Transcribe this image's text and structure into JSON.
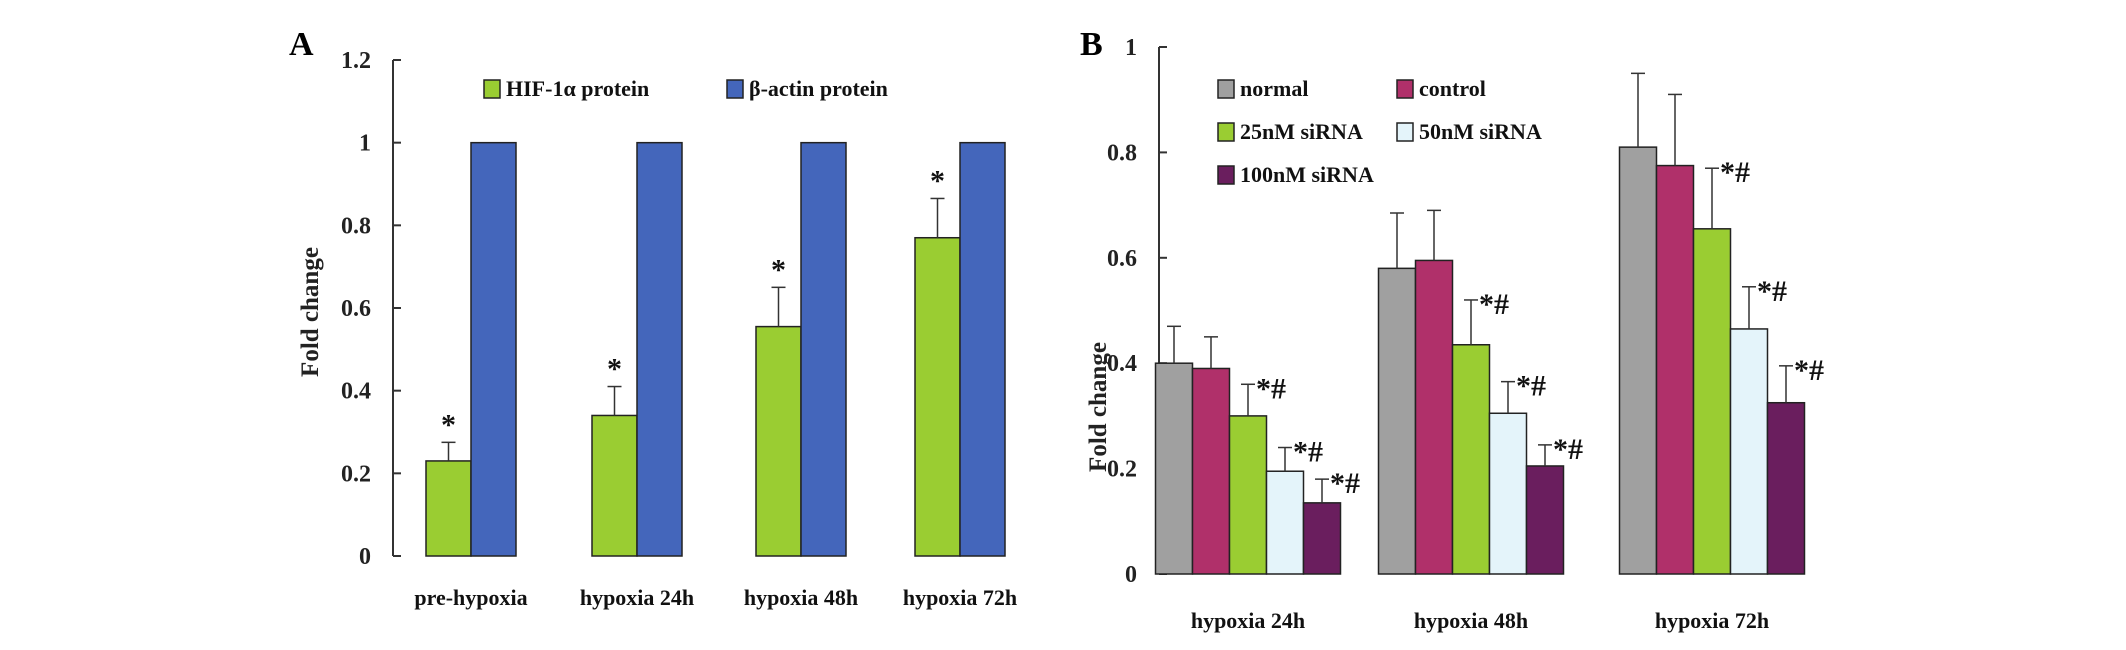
{
  "chart_data": [
    {
      "type": "bar",
      "panel_label": "A",
      "title": "",
      "xlabel": "",
      "ylabel": "Fold change",
      "ylim": [
        0,
        1.2
      ],
      "yticks": [
        "0",
        "0.2",
        "0.4",
        "0.6",
        "0.8",
        "1",
        "1.2"
      ],
      "categories": [
        "pre-hypoxia",
        "hypoxia 24h",
        "hypoxia 48h",
        "hypoxia 72h"
      ],
      "legend_position": "top",
      "series": [
        {
          "name": "HIF-1α protein",
          "color": "#9ACD32",
          "values": [
            0.23,
            0.34,
            0.555,
            0.77
          ],
          "error_upper": [
            0.275,
            0.41,
            0.65,
            0.865
          ],
          "annotations": [
            "*",
            "*",
            "*",
            "*"
          ]
        },
        {
          "name": "β-actin protein",
          "color": "#4466BB",
          "values": [
            1,
            1,
            1,
            1
          ],
          "error_upper": [
            null,
            null,
            null,
            null
          ],
          "annotations": [
            "",
            "",
            "",
            ""
          ]
        }
      ]
    },
    {
      "type": "bar",
      "panel_label": "B",
      "title": "",
      "xlabel": "",
      "ylabel": "Fold change",
      "ylim": [
        0,
        1
      ],
      "yticks": [
        "0",
        "0.2",
        "0.4",
        "0.6",
        "0.8",
        "1"
      ],
      "categories": [
        "hypoxia 24h",
        "hypoxia 48h",
        "hypoxia 72h"
      ],
      "legend_position": "top-left",
      "series": [
        {
          "name": "normal",
          "color": "#A0A0A0",
          "values": [
            0.4,
            0.58,
            0.81
          ],
          "error_upper": [
            0.47,
            0.685,
            0.95
          ],
          "annotations": [
            "",
            "",
            ""
          ]
        },
        {
          "name": "control",
          "color": "#B0306A",
          "values": [
            0.39,
            0.595,
            0.775
          ],
          "error_upper": [
            0.45,
            0.69,
            0.91
          ],
          "annotations": [
            "",
            "",
            ""
          ]
        },
        {
          "name": "25nM siRNA",
          "color": "#9ACD32",
          "values": [
            0.3,
            0.435,
            0.655
          ],
          "error_upper": [
            0.36,
            0.52,
            0.77
          ],
          "annotations": [
            "*#",
            "*#",
            "*#"
          ]
        },
        {
          "name": "50nM siRNA",
          "color": "#E4F4FA",
          "values": [
            0.195,
            0.305,
            0.465
          ],
          "error_upper": [
            0.24,
            0.365,
            0.545
          ],
          "annotations": [
            "*#",
            "*#",
            "*#"
          ]
        },
        {
          "name": "100nM siRNA",
          "color": "#6A1E5E",
          "values": [
            0.135,
            0.205,
            0.325
          ],
          "error_upper": [
            0.18,
            0.245,
            0.395
          ],
          "annotations": [
            "*#",
            "*#",
            "*#"
          ]
        }
      ]
    }
  ]
}
